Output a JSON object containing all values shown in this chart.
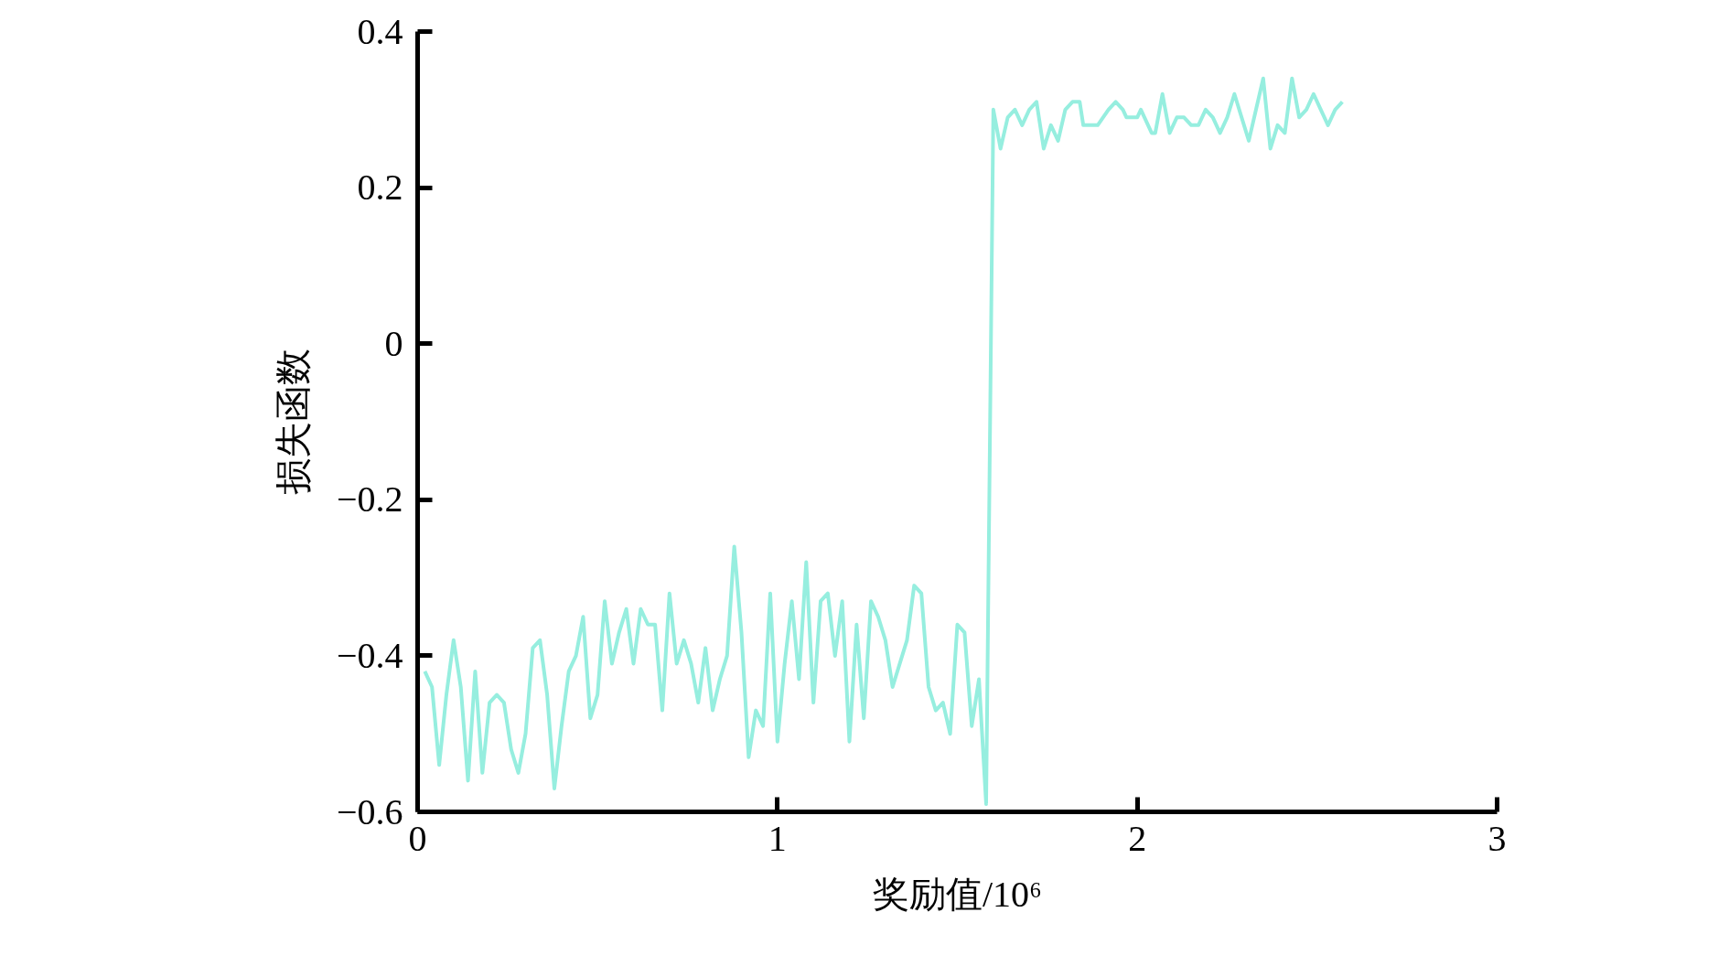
{
  "chart_data": {
    "type": "line",
    "xlabel": "奖励值/10⁶",
    "ylabel": "损失函数",
    "xlim": [
      0,
      3
    ],
    "ylim": [
      -0.6,
      0.4
    ],
    "xticks": [
      0,
      1,
      2,
      3
    ],
    "yticks": [
      {
        "value": -0.6,
        "label": "−0.6"
      },
      {
        "value": -0.4,
        "label": "−0.4"
      },
      {
        "value": -0.2,
        "label": "−0.2"
      },
      0,
      0.2,
      0.4
    ],
    "grid": false,
    "marker": "none",
    "line_style": "solid",
    "series": [
      {
        "color": "#96eedf",
        "x": [
          0.02,
          0.04,
          0.06,
          0.08,
          0.1,
          0.12,
          0.14,
          0.16,
          0.18,
          0.2,
          0.22,
          0.24,
          0.26,
          0.28,
          0.3,
          0.32,
          0.34,
          0.36,
          0.38,
          0.4,
          0.42,
          0.44,
          0.46,
          0.48,
          0.5,
          0.52,
          0.54,
          0.56,
          0.58,
          0.6,
          0.62,
          0.64,
          0.66,
          0.68,
          0.7,
          0.72,
          0.74,
          0.76,
          0.78,
          0.8,
          0.82,
          0.84,
          0.86,
          0.88,
          0.9,
          0.92,
          0.94,
          0.96,
          0.98,
          1.0,
          1.02,
          1.04,
          1.06,
          1.08,
          1.1,
          1.12,
          1.14,
          1.16,
          1.18,
          1.2,
          1.22,
          1.24,
          1.26,
          1.28,
          1.3,
          1.32,
          1.34,
          1.36,
          1.38,
          1.4,
          1.42,
          1.44,
          1.46,
          1.48,
          1.5,
          1.52,
          1.54,
          1.56,
          1.58,
          1.6,
          1.62,
          1.64,
          1.66,
          1.68,
          1.7,
          1.72,
          1.74,
          1.76,
          1.78,
          1.8,
          1.82,
          1.84,
          1.85,
          1.88,
          1.89,
          1.92,
          1.94,
          1.96,
          1.97,
          2.0,
          2.01,
          2.04,
          2.05,
          2.07,
          2.09,
          2.11,
          2.13,
          2.15,
          2.17,
          2.19,
          2.21,
          2.23,
          2.25,
          2.27,
          2.29,
          2.31,
          2.33,
          2.35,
          2.37,
          2.39,
          2.41,
          2.43,
          2.45,
          2.47,
          2.49,
          2.51,
          2.53,
          2.55,
          2.57
        ],
        "values": [
          -0.42,
          -0.44,
          -0.54,
          -0.45,
          -0.38,
          -0.44,
          -0.56,
          -0.42,
          -0.55,
          -0.46,
          -0.45,
          -0.46,
          -0.52,
          -0.55,
          -0.5,
          -0.39,
          -0.38,
          -0.45,
          -0.57,
          -0.49,
          -0.42,
          -0.4,
          -0.35,
          -0.48,
          -0.45,
          -0.33,
          -0.41,
          -0.37,
          -0.34,
          -0.41,
          -0.34,
          -0.36,
          -0.36,
          -0.47,
          -0.32,
          -0.41,
          -0.38,
          -0.41,
          -0.46,
          -0.39,
          -0.47,
          -0.43,
          -0.4,
          -0.26,
          -0.37,
          -0.53,
          -0.47,
          -0.49,
          -0.32,
          -0.51,
          -0.41,
          -0.33,
          -0.43,
          -0.28,
          -0.46,
          -0.33,
          -0.32,
          -0.4,
          -0.33,
          -0.51,
          -0.36,
          -0.48,
          -0.33,
          -0.35,
          -0.38,
          -0.44,
          -0.41,
          -0.38,
          -0.31,
          -0.32,
          -0.44,
          -0.47,
          -0.46,
          -0.5,
          -0.36,
          -0.37,
          -0.49,
          -0.43,
          -0.59,
          0.3,
          0.25,
          0.29,
          0.3,
          0.28,
          0.3,
          0.31,
          0.25,
          0.28,
          0.26,
          0.3,
          0.31,
          0.31,
          0.28,
          0.28,
          0.28,
          0.3,
          0.31,
          0.3,
          0.29,
          0.29,
          0.3,
          0.27,
          0.27,
          0.32,
          0.27,
          0.29,
          0.29,
          0.28,
          0.28,
          0.3,
          0.29,
          0.27,
          0.29,
          0.32,
          0.29,
          0.26,
          0.3,
          0.34,
          0.25,
          0.28,
          0.27,
          0.34,
          0.29,
          0.3,
          0.32,
          0.3,
          0.28,
          0.3,
          0.31
        ]
      }
    ]
  }
}
